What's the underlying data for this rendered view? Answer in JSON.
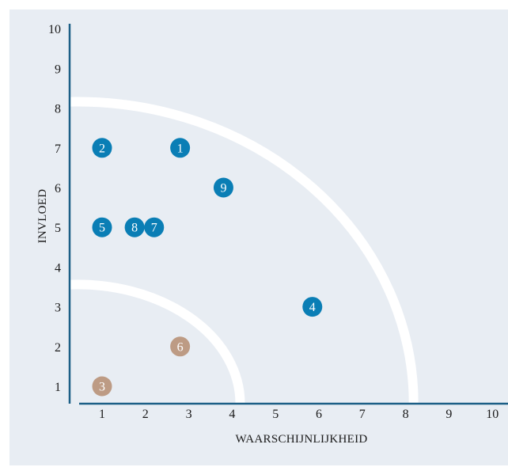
{
  "chart_data": {
    "type": "scatter",
    "xlabel": "WAARSCHIJNLIJKHEID",
    "ylabel": "INVLOED",
    "xlim": [
      0.5,
      10.3
    ],
    "ylim": [
      0.6,
      10.4
    ],
    "x_ticks": [
      "1",
      "2",
      "3",
      "4",
      "5",
      "6",
      "7",
      "8",
      "9",
      "10"
    ],
    "y_ticks": [
      "1",
      "2",
      "3",
      "4",
      "5",
      "6",
      "7",
      "8",
      "9",
      "10"
    ],
    "zone_boundaries": [
      {
        "radius_x": 3.75,
        "radius_y": 3.0
      },
      {
        "radius_x": 7.75,
        "radius_y": 7.6
      }
    ],
    "grid": false,
    "points": [
      {
        "label": "1",
        "x": 2.8,
        "y": 7,
        "color": "#0a7eb5"
      },
      {
        "label": "2",
        "x": 1,
        "y": 7,
        "color": "#0a7eb5"
      },
      {
        "label": "3",
        "x": 1,
        "y": 1,
        "color": "#bd9b84"
      },
      {
        "label": "4",
        "x": 5.85,
        "y": 3,
        "color": "#0a7eb5"
      },
      {
        "label": "5",
        "x": 1,
        "y": 5,
        "color": "#0a7eb5"
      },
      {
        "label": "6",
        "x": 2.8,
        "y": 2,
        "color": "#bd9b84"
      },
      {
        "label": "7",
        "x": 2.2,
        "y": 5,
        "color": "#0a7eb5"
      },
      {
        "label": "8",
        "x": 1.75,
        "y": 5,
        "color": "#0a7eb5"
      },
      {
        "label": "9",
        "x": 3.8,
        "y": 6,
        "color": "#0a7eb5"
      }
    ],
    "colors": {
      "background": "#e8edf3",
      "axis": "#1c5f86",
      "zone_line": "#ffffff"
    }
  }
}
